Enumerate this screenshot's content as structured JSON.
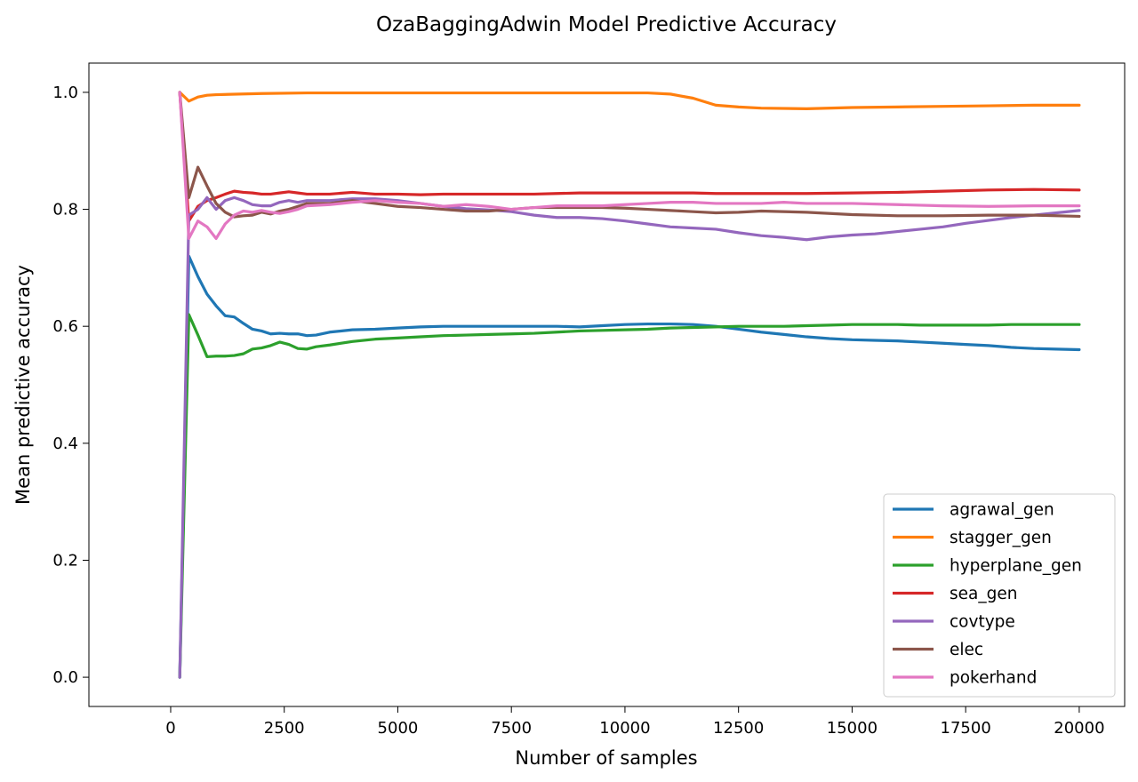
{
  "chart_data": {
    "type": "line",
    "title": "OzaBaggingAdwin Model Predictive Accuracy",
    "xlabel": "Number of samples",
    "ylabel": "Mean predictive accuracy",
    "xlim": [
      -1800,
      21000
    ],
    "ylim": [
      -0.05,
      1.05
    ],
    "xticks": [
      0,
      2500,
      5000,
      7500,
      10000,
      12500,
      15000,
      17500,
      20000
    ],
    "yticks": [
      0.0,
      0.2,
      0.4,
      0.6,
      0.8,
      1.0
    ],
    "xtick_labels": [
      "0",
      "2500",
      "5000",
      "7500",
      "10000",
      "12500",
      "15000",
      "17500",
      "20000"
    ],
    "ytick_labels": [
      "0.0",
      "0.2",
      "0.4",
      "0.6",
      "0.8",
      "1.0"
    ],
    "grid": false,
    "legend_position": "lower-right",
    "series": [
      {
        "name": "agrawal_gen",
        "color": "#1f77b4",
        "x": [
          200,
          400,
          600,
          800,
          1000,
          1200,
          1400,
          1600,
          1800,
          2000,
          2200,
          2400,
          2600,
          2800,
          3000,
          3200,
          3500,
          4000,
          4500,
          5000,
          5500,
          6000,
          6500,
          7000,
          7500,
          8000,
          8500,
          9000,
          9500,
          10000,
          10500,
          11000,
          11500,
          12000,
          12500,
          13000,
          13500,
          14000,
          14500,
          15000,
          15500,
          16000,
          16500,
          17000,
          17500,
          18000,
          18500,
          19000,
          19500,
          20000
        ],
        "y": [
          0.0,
          0.72,
          0.685,
          0.655,
          0.635,
          0.618,
          0.616,
          0.605,
          0.595,
          0.592,
          0.587,
          0.588,
          0.587,
          0.587,
          0.584,
          0.585,
          0.59,
          0.594,
          0.595,
          0.597,
          0.599,
          0.6,
          0.6,
          0.6,
          0.6,
          0.6,
          0.6,
          0.599,
          0.601,
          0.603,
          0.604,
          0.604,
          0.603,
          0.6,
          0.595,
          0.59,
          0.586,
          0.582,
          0.579,
          0.577,
          0.576,
          0.575,
          0.573,
          0.571,
          0.569,
          0.567,
          0.564,
          0.562,
          0.561,
          0.56
        ]
      },
      {
        "name": "stagger_gen",
        "color": "#ff7f0e",
        "x": [
          200,
          400,
          600,
          800,
          1000,
          1500,
          2000,
          3000,
          5000,
          8000,
          10500,
          11000,
          11500,
          12000,
          12500,
          13000,
          14000,
          15000,
          16000,
          17000,
          18000,
          19000,
          20000
        ],
        "y": [
          1.0,
          0.985,
          0.992,
          0.995,
          0.996,
          0.997,
          0.998,
          0.999,
          0.999,
          0.999,
          0.999,
          0.997,
          0.99,
          0.978,
          0.975,
          0.973,
          0.972,
          0.974,
          0.975,
          0.976,
          0.977,
          0.978,
          0.978
        ]
      },
      {
        "name": "hyperplane_gen",
        "color": "#2ca02c",
        "x": [
          200,
          400,
          600,
          800,
          1000,
          1200,
          1400,
          1600,
          1800,
          2000,
          2200,
          2400,
          2600,
          2800,
          3000,
          3200,
          3500,
          4000,
          4500,
          5000,
          5500,
          6000,
          6500,
          7000,
          7500,
          8000,
          8500,
          9000,
          9500,
          10000,
          10500,
          11000,
          11500,
          12000,
          12500,
          13000,
          13500,
          14000,
          14500,
          15000,
          15500,
          16000,
          16500,
          17000,
          17500,
          18000,
          18500,
          19000,
          19500,
          20000
        ],
        "y": [
          0.0,
          0.62,
          0.585,
          0.548,
          0.549,
          0.549,
          0.55,
          0.553,
          0.561,
          0.563,
          0.567,
          0.573,
          0.569,
          0.562,
          0.561,
          0.565,
          0.568,
          0.574,
          0.578,
          0.58,
          0.582,
          0.584,
          0.585,
          0.586,
          0.587,
          0.588,
          0.59,
          0.592,
          0.593,
          0.594,
          0.595,
          0.597,
          0.598,
          0.599,
          0.6,
          0.6,
          0.6,
          0.601,
          0.602,
          0.603,
          0.603,
          0.603,
          0.602,
          0.602,
          0.602,
          0.602,
          0.603,
          0.603,
          0.603,
          0.603
        ]
      },
      {
        "name": "sea_gen",
        "color": "#d62728",
        "x": [
          200,
          400,
          600,
          800,
          1000,
          1200,
          1400,
          1600,
          1800,
          2000,
          2200,
          2400,
          2600,
          2800,
          3000,
          3500,
          4000,
          4500,
          5000,
          5500,
          6000,
          6500,
          7000,
          7500,
          8000,
          8500,
          9000,
          9500,
          10000,
          10500,
          11000,
          11500,
          12000,
          12500,
          13000,
          14000,
          15000,
          16000,
          17000,
          18000,
          19000,
          20000
        ],
        "y": [
          1.0,
          0.78,
          0.805,
          0.815,
          0.82,
          0.826,
          0.831,
          0.829,
          0.828,
          0.826,
          0.826,
          0.828,
          0.83,
          0.828,
          0.826,
          0.826,
          0.829,
          0.826,
          0.826,
          0.825,
          0.826,
          0.826,
          0.826,
          0.826,
          0.826,
          0.827,
          0.828,
          0.828,
          0.828,
          0.828,
          0.828,
          0.828,
          0.827,
          0.827,
          0.827,
          0.827,
          0.828,
          0.829,
          0.831,
          0.833,
          0.834,
          0.833
        ]
      },
      {
        "name": "covtype",
        "color": "#9467bd",
        "x": [
          200,
          400,
          600,
          800,
          1000,
          1200,
          1400,
          1600,
          1800,
          2000,
          2200,
          2400,
          2600,
          2800,
          3000,
          3500,
          4000,
          4500,
          5000,
          5500,
          6000,
          6500,
          7000,
          7500,
          8000,
          8500,
          9000,
          9500,
          10000,
          10500,
          11000,
          11500,
          12000,
          12500,
          13000,
          13500,
          14000,
          14500,
          15000,
          15500,
          16000,
          16500,
          17000,
          17500,
          18000,
          18500,
          19000,
          19500,
          20000
        ],
        "y": [
          0.0,
          0.79,
          0.8,
          0.82,
          0.8,
          0.815,
          0.82,
          0.815,
          0.808,
          0.806,
          0.806,
          0.812,
          0.815,
          0.812,
          0.815,
          0.815,
          0.818,
          0.818,
          0.815,
          0.81,
          0.805,
          0.801,
          0.799,
          0.796,
          0.79,
          0.786,
          0.786,
          0.784,
          0.78,
          0.775,
          0.77,
          0.768,
          0.766,
          0.76,
          0.755,
          0.752,
          0.748,
          0.753,
          0.756,
          0.758,
          0.762,
          0.766,
          0.77,
          0.776,
          0.781,
          0.786,
          0.79,
          0.794,
          0.798
        ]
      },
      {
        "name": "elec",
        "color": "#8c564b",
        "x": [
          200,
          400,
          600,
          800,
          1000,
          1200,
          1400,
          1600,
          1800,
          2000,
          2200,
          2400,
          2600,
          2800,
          3000,
          3500,
          4000,
          4500,
          5000,
          5500,
          6000,
          6500,
          7000,
          7500,
          8000,
          8500,
          9000,
          9500,
          10000,
          10500,
          11000,
          11500,
          12000,
          12500,
          13000,
          14000,
          15000,
          16000,
          17000,
          18000,
          19000,
          20000
        ],
        "y": [
          1.0,
          0.82,
          0.872,
          0.84,
          0.81,
          0.795,
          0.787,
          0.789,
          0.79,
          0.795,
          0.792,
          0.797,
          0.8,
          0.805,
          0.81,
          0.81,
          0.815,
          0.81,
          0.805,
          0.803,
          0.8,
          0.797,
          0.797,
          0.8,
          0.803,
          0.803,
          0.803,
          0.803,
          0.802,
          0.8,
          0.798,
          0.796,
          0.794,
          0.795,
          0.797,
          0.795,
          0.791,
          0.789,
          0.789,
          0.79,
          0.79,
          0.788
        ]
      },
      {
        "name": "pokerhand",
        "color": "#e377c2",
        "x": [
          200,
          400,
          600,
          800,
          1000,
          1200,
          1400,
          1600,
          1800,
          2000,
          2200,
          2400,
          2600,
          2800,
          3000,
          3500,
          4000,
          4500,
          5000,
          5500,
          6000,
          6500,
          7000,
          7500,
          8000,
          8500,
          9000,
          9500,
          10000,
          10500,
          11000,
          11500,
          12000,
          12500,
          13000,
          13500,
          14000,
          15000,
          16000,
          17000,
          18000,
          19000,
          20000
        ],
        "y": [
          1.0,
          0.75,
          0.78,
          0.77,
          0.75,
          0.775,
          0.79,
          0.797,
          0.795,
          0.798,
          0.795,
          0.793,
          0.796,
          0.8,
          0.806,
          0.808,
          0.812,
          0.815,
          0.812,
          0.81,
          0.805,
          0.808,
          0.805,
          0.8,
          0.803,
          0.806,
          0.806,
          0.806,
          0.808,
          0.81,
          0.812,
          0.812,
          0.81,
          0.81,
          0.81,
          0.812,
          0.81,
          0.81,
          0.808,
          0.806,
          0.805,
          0.806,
          0.806
        ]
      }
    ]
  }
}
